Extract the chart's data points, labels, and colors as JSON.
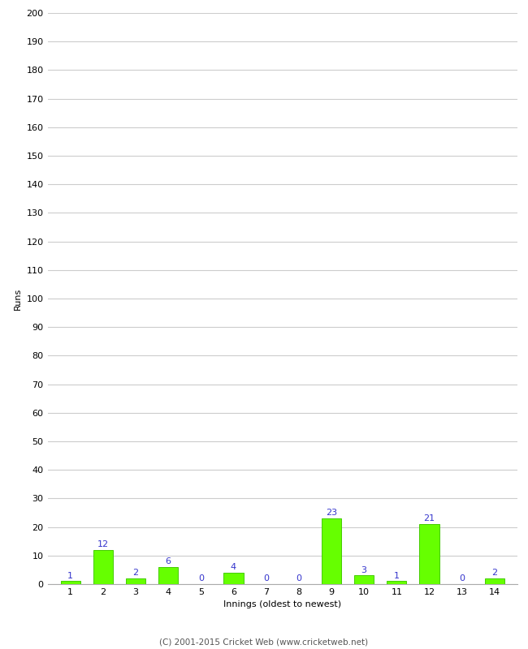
{
  "innings": [
    1,
    2,
    3,
    4,
    5,
    6,
    7,
    8,
    9,
    10,
    11,
    12,
    13,
    14
  ],
  "runs": [
    1,
    12,
    2,
    6,
    0,
    4,
    0,
    0,
    23,
    3,
    1,
    21,
    0,
    2
  ],
  "bar_color": "#66ff00",
  "bar_edge_color": "#44cc00",
  "label_color": "#3333cc",
  "xlabel": "Innings (oldest to newest)",
  "ylabel": "Runs",
  "ylim": [
    0,
    200
  ],
  "ytick_step": 10,
  "background_color": "#ffffff",
  "grid_color": "#cccccc",
  "footer": "(C) 2001-2015 Cricket Web (www.cricketweb.net)",
  "footer_color": "#555555",
  "label_fontsize": 8,
  "tick_fontsize": 8,
  "axis_label_fontsize": 8
}
